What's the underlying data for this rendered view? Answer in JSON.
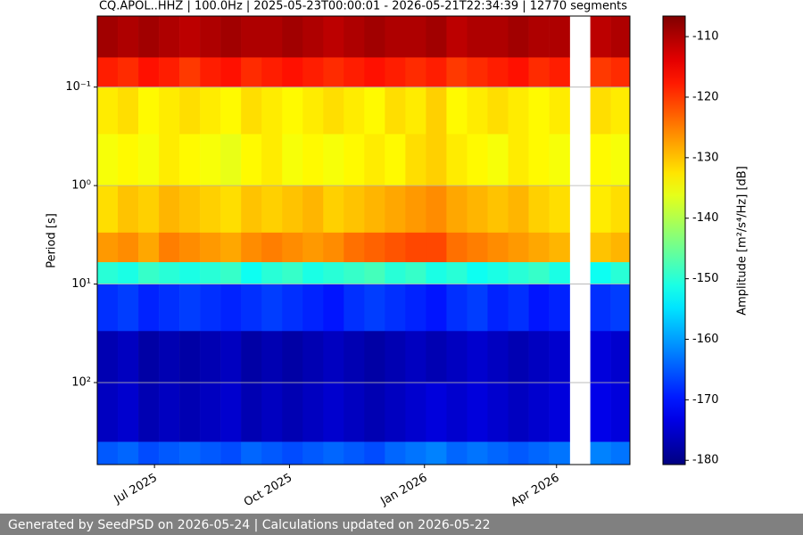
{
  "chart_data": {
    "type": "heatmap",
    "title": "CQ.APOL..HHZ | 100.0Hz | 2025-05-23T00:00:01 - 2026-05-21T22:34:39 | 12770 segments",
    "ylabel": "Period [s]",
    "colorbar_label": "Amplitude [m²/s⁴/Hz] [dB]",
    "colormap": "jet",
    "yscale": "log",
    "yinverted": true,
    "grid": true,
    "xlim": [
      "2025-05-23",
      "2026-05-21"
    ],
    "xticks": [
      {
        "value": "2025-07",
        "label": "Jul 2025"
      },
      {
        "value": "2025-10",
        "label": "Oct 2025"
      },
      {
        "value": "2026-01",
        "label": "Jan 2026"
      },
      {
        "value": "2026-04",
        "label": "Apr 2026"
      }
    ],
    "ylim": [
      0.019,
      680
    ],
    "yticks": [
      {
        "value": 0.1,
        "label": "10⁻¹"
      },
      {
        "value": 1,
        "label": "10⁰"
      },
      {
        "value": 10,
        "label": "10¹"
      },
      {
        "value": 100,
        "label": "10²"
      }
    ],
    "clim": [
      -180.7,
      -106.6
    ],
    "cticks": [
      -110,
      -120,
      -130,
      -140,
      -150,
      -160,
      -170,
      -180
    ],
    "x": [
      "2025-05-23",
      "2025-06-06",
      "2025-06-20",
      "2025-07-04",
      "2025-07-18",
      "2025-08-01",
      "2025-08-15",
      "2025-08-29",
      "2025-09-12",
      "2025-09-26",
      "2025-10-10",
      "2025-10-24",
      "2025-11-07",
      "2025-11-21",
      "2025-12-05",
      "2025-12-19",
      "2026-01-02",
      "2026-01-16",
      "2026-01-30",
      "2026-02-13",
      "2026-02-27",
      "2026-03-13",
      "2026-03-27",
      "2026-04-10",
      "2026-04-24",
      "2026-05-08",
      "2026-05-21"
    ],
    "y": [
      0.019,
      0.05,
      0.1,
      0.3,
      1,
      3,
      6,
      10,
      30,
      100,
      400,
      680
    ],
    "z": [
      [
        -109,
        -110,
        -109,
        -110,
        -111,
        -110,
        -109,
        -110,
        -110,
        -109,
        -110,
        -111,
        -110,
        -109,
        -110,
        -110,
        -109,
        -111,
        -110,
        -110,
        -109,
        -110,
        -110,
        null,
        -111,
        -110
      ],
      [
        -118,
        -119,
        -117,
        -118,
        -120,
        -118,
        -117,
        -119,
        -118,
        -117,
        -118,
        -119,
        -118,
        -117,
        -118,
        -119,
        -118,
        -120,
        -119,
        -118,
        -117,
        -119,
        -118,
        null,
        -120,
        -119
      ],
      [
        -133,
        -132,
        -134,
        -133,
        -132,
        -133,
        -134,
        -132,
        -133,
        -134,
        -133,
        -132,
        -133,
        -134,
        -132,
        -133,
        -131,
        -134,
        -133,
        -132,
        -133,
        -134,
        -133,
        null,
        -132,
        -133
      ],
      [
        -135,
        -134,
        -135,
        -133,
        -134,
        -135,
        -136,
        -134,
        -133,
        -135,
        -134,
        -135,
        -134,
        -133,
        -134,
        -132,
        -131,
        -133,
        -134,
        -135,
        -133,
        -134,
        -135,
        null,
        -134,
        -135
      ],
      [
        -132,
        -130,
        -131,
        -129,
        -130,
        -131,
        -132,
        -130,
        -131,
        -130,
        -129,
        -131,
        -130,
        -129,
        -128,
        -127,
        -126,
        -128,
        -129,
        -130,
        -129,
        -131,
        -132,
        null,
        -133,
        -132
      ],
      [
        -127,
        -126,
        -128,
        -125,
        -126,
        -127,
        -128,
        -126,
        -125,
        -126,
        -127,
        -126,
        -124,
        -123,
        -122,
        -121,
        -121,
        -124,
        -125,
        -126,
        -127,
        -128,
        -129,
        null,
        -130,
        -129
      ],
      [
        -150,
        -151,
        -149,
        -150,
        -151,
        -150,
        -149,
        -152,
        -150,
        -149,
        -151,
        -150,
        -149,
        -148,
        -150,
        -149,
        -151,
        -150,
        -152,
        -151,
        -150,
        -149,
        -151,
        null,
        -152,
        -150
      ],
      [
        -168,
        -167,
        -169,
        -168,
        -167,
        -168,
        -169,
        -168,
        -167,
        -168,
        -169,
        -170,
        -168,
        -167,
        -168,
        -169,
        -170,
        -168,
        -167,
        -169,
        -168,
        -170,
        -169,
        null,
        -168,
        -167
      ],
      [
        -177,
        -176,
        -178,
        -177,
        -178,
        -177,
        -176,
        -178,
        -177,
        -178,
        -177,
        -176,
        -177,
        -178,
        -177,
        -176,
        -177,
        -176,
        -175,
        -176,
        -177,
        -176,
        -175,
        null,
        -174,
        -175
      ],
      [
        -176,
        -175,
        -177,
        -176,
        -177,
        -176,
        -175,
        -177,
        -176,
        -177,
        -176,
        -175,
        -176,
        -177,
        -176,
        -175,
        -174,
        -175,
        -174,
        -175,
        -176,
        -175,
        -174,
        null,
        -173,
        -174
      ],
      [
        -165,
        -164,
        -166,
        -165,
        -164,
        -165,
        -166,
        -164,
        -165,
        -166,
        -165,
        -164,
        -165,
        -166,
        -164,
        -163,
        -162,
        -164,
        -163,
        -164,
        -165,
        -164,
        -163,
        null,
        -162,
        -163
      ]
    ]
  },
  "footer": "Generated by SeedPSD on 2026-05-24 | Calculations updated on 2026-05-22"
}
